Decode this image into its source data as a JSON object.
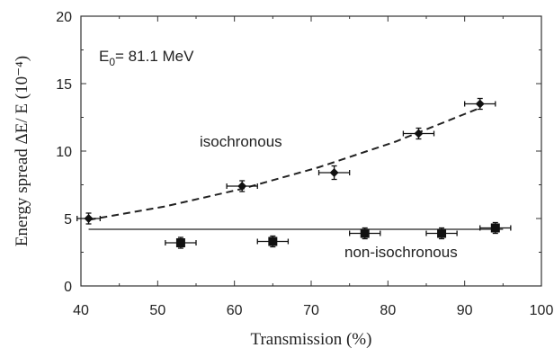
{
  "chart_data": {
    "type": "scatter",
    "xlabel": "Transmission (%)",
    "ylabel": "Energy spread ΔE/ E (10⁻⁴)",
    "xlim": [
      40,
      100
    ],
    "ylim": [
      0,
      20
    ],
    "x_ticks": [
      "40",
      "50",
      "60",
      "70",
      "80",
      "90",
      "100"
    ],
    "y_ticks": [
      "0",
      "5",
      "10",
      "15",
      "20"
    ],
    "grid": false,
    "annotations": {
      "energy_main": "E",
      "energy_sub": "0",
      "energy_rest": "= 81.1 MeV",
      "isochronous": "isochronous",
      "non_isochronous": "non-isochronous"
    },
    "series": [
      {
        "name": "isochronous",
        "marker": "diamond",
        "x": [
          41,
          61,
          73,
          84,
          92
        ],
        "y": [
          5.0,
          7.4,
          8.4,
          11.3,
          13.5
        ],
        "xerr": [
          1.5,
          2.0,
          2.0,
          2.0,
          2.0
        ],
        "yerr": [
          0.4,
          0.4,
          0.5,
          0.4,
          0.4
        ]
      },
      {
        "name": "non-isochronous",
        "marker": "square",
        "x": [
          53,
          65,
          77,
          87,
          94
        ],
        "y": [
          3.2,
          3.3,
          3.9,
          3.9,
          4.3
        ],
        "xerr": [
          2.0,
          2.0,
          2.0,
          2.0,
          2.0
        ],
        "yerr": [
          0.4,
          0.4,
          0.4,
          0.4,
          0.4
        ]
      }
    ],
    "fits": [
      {
        "name": "isochronous fit",
        "style": "dashed",
        "x": [
          41,
          51,
          61,
          71,
          81,
          92
        ],
        "y": [
          4.9,
          5.9,
          7.2,
          8.8,
          10.7,
          13.2
        ]
      },
      {
        "name": "non-isochronous fit",
        "style": "solid",
        "x": [
          41,
          95
        ],
        "y": [
          4.2,
          4.2
        ]
      }
    ]
  }
}
